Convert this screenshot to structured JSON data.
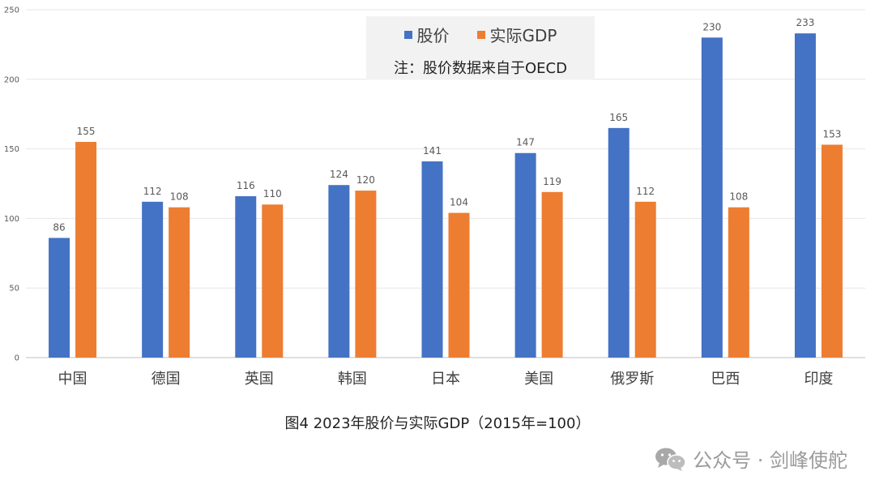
{
  "chart_data": {
    "type": "bar",
    "categories": [
      "中国",
      "德国",
      "英国",
      "韩国",
      "日本",
      "美国",
      "俄罗斯",
      "巴西",
      "印度"
    ],
    "series": [
      {
        "name": "股价",
        "color": "#4472c4",
        "values": [
          86,
          112,
          116,
          124,
          141,
          147,
          165,
          230,
          233
        ]
      },
      {
        "name": "实际GDP",
        "color": "#ed7d31",
        "values": [
          155,
          108,
          110,
          120,
          104,
          119,
          112,
          108,
          153
        ]
      }
    ],
    "ylim": [
      0,
      250
    ],
    "yticks": [
      0,
      50,
      100,
      150,
      200,
      250
    ],
    "grid": true,
    "legend_note": "注：股价数据来自于OECD",
    "title": "图4 2023年股价与实际GDP（2015年=100）"
  },
  "watermark": {
    "icon": "wechat-icon",
    "text": "公众号 · 剑峰使舵"
  }
}
